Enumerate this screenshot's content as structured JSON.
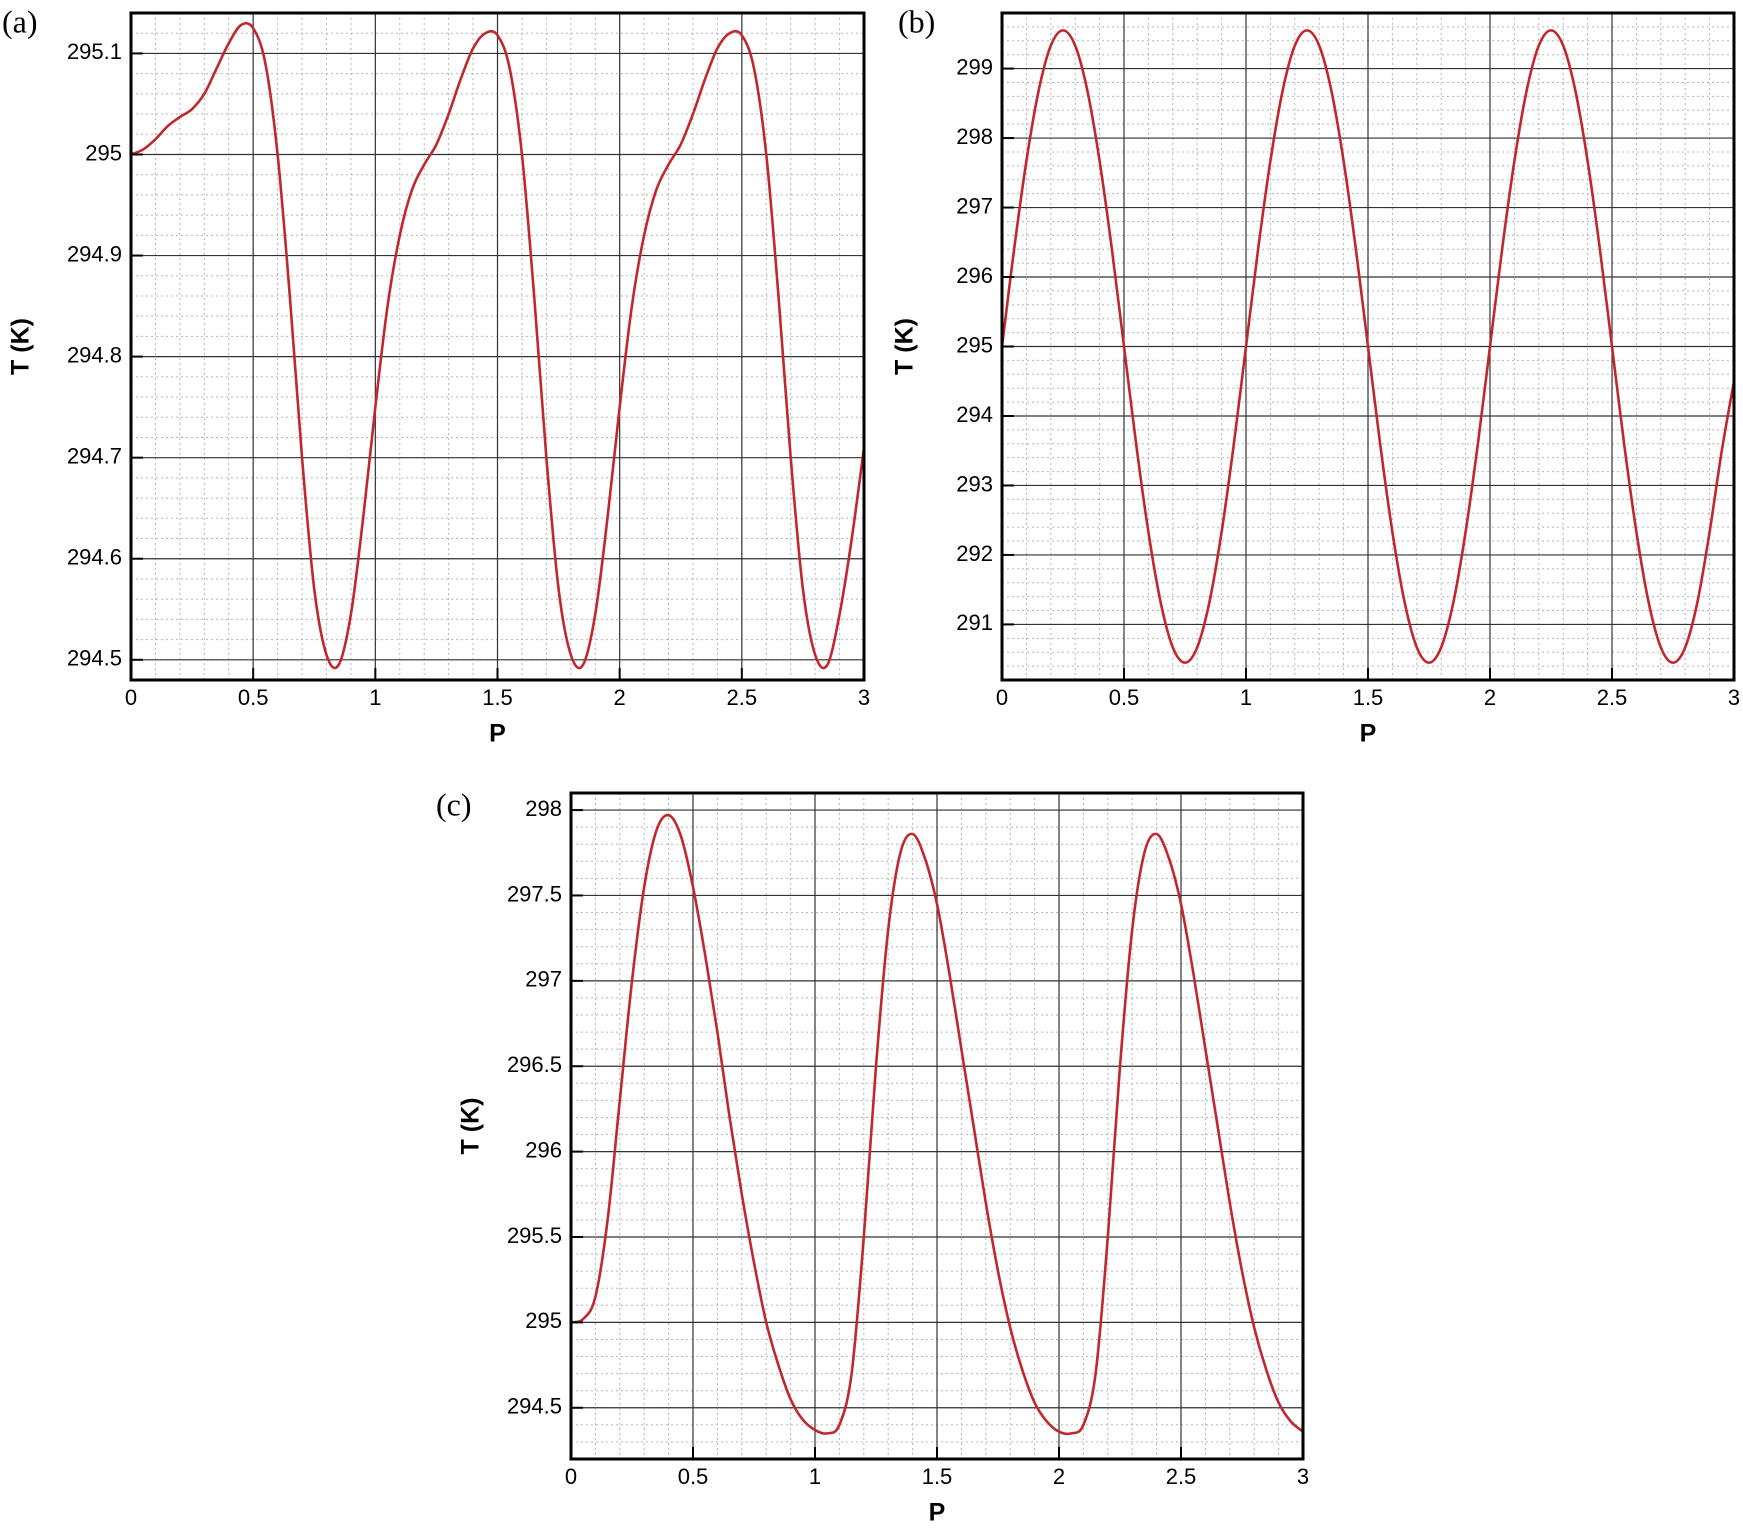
{
  "chart_data": [
    {
      "type": "line",
      "label": "(a)",
      "x_label": "P",
      "y_label": "T (K)",
      "color": "#c1272d",
      "grid": true,
      "minor_divisions": 5,
      "xlim": [
        0,
        3
      ],
      "xticks": [
        0,
        0.5,
        1,
        1.5,
        2,
        2.5,
        3
      ],
      "ylim": [
        294.48,
        295.14
      ],
      "yticks": [
        294.5,
        294.6,
        294.7,
        294.8,
        294.9,
        295,
        295.1
      ],
      "x": [
        0,
        0.05,
        0.1,
        0.15,
        0.2,
        0.25,
        0.3,
        0.35,
        0.4,
        0.45,
        0.5,
        0.55,
        0.6,
        0.65,
        0.7,
        0.75,
        0.8,
        0.85,
        0.9,
        0.95,
        1,
        1.05,
        1.1,
        1.15,
        1.2,
        1.25,
        1.3,
        1.35,
        1.4,
        1.45,
        1.5,
        1.55,
        1.6,
        1.65,
        1.7,
        1.75,
        1.8,
        1.85,
        1.9,
        1.95,
        2,
        2.05,
        2.1,
        2.15,
        2.2,
        2.25,
        2.3,
        2.35,
        2.4,
        2.45,
        2.5,
        2.55,
        2.6,
        2.65,
        2.7,
        2.75,
        2.8,
        2.85,
        2.9,
        2.95,
        3
      ],
      "values": [
        295.0,
        295.005,
        295.015,
        295.028,
        295.037,
        295.045,
        295.06,
        295.085,
        295.11,
        295.128,
        295.125,
        295.09,
        295.0,
        294.86,
        294.7,
        294.57,
        294.505,
        294.495,
        294.545,
        294.64,
        294.75,
        294.85,
        294.92,
        294.965,
        294.99,
        295.01,
        295.04,
        295.075,
        295.105,
        295.12,
        295.118,
        295.085,
        295.0,
        294.86,
        294.7,
        294.57,
        294.505,
        294.495,
        294.545,
        294.64,
        294.75,
        294.85,
        294.92,
        294.965,
        294.99,
        295.01,
        295.04,
        295.075,
        295.105,
        295.12,
        295.118,
        295.085,
        295.0,
        294.86,
        294.7,
        294.57,
        294.505,
        294.495,
        294.545,
        294.62,
        294.71
      ]
    },
    {
      "type": "line",
      "label": "(b)",
      "x_label": "P",
      "y_label": "T (K)",
      "color": "#c1272d",
      "grid": true,
      "minor_divisions": 5,
      "xlim": [
        0,
        3
      ],
      "xticks": [
        0,
        0.5,
        1,
        1.5,
        2,
        2.5,
        3
      ],
      "ylim": [
        290.2,
        299.8
      ],
      "yticks": [
        291,
        292,
        293,
        294,
        295,
        296,
        297,
        298,
        299
      ],
      "x": [
        0,
        0.05,
        0.1,
        0.15,
        0.2,
        0.25,
        0.3,
        0.35,
        0.4,
        0.45,
        0.5,
        0.55,
        0.6,
        0.65,
        0.7,
        0.75,
        0.8,
        0.85,
        0.9,
        0.95,
        1,
        1.05,
        1.1,
        1.15,
        1.2,
        1.25,
        1.3,
        1.35,
        1.4,
        1.45,
        1.5,
        1.55,
        1.6,
        1.65,
        1.7,
        1.75,
        1.8,
        1.85,
        1.9,
        1.95,
        2,
        2.05,
        2.1,
        2.15,
        2.2,
        2.25,
        2.3,
        2.35,
        2.4,
        2.45,
        2.5,
        2.55,
        2.6,
        2.65,
        2.7,
        2.75,
        2.8,
        2.85,
        2.9,
        2.95,
        3
      ],
      "values": [
        295,
        296.41,
        297.67,
        298.68,
        299.33,
        299.55,
        299.33,
        298.68,
        297.67,
        296.41,
        295,
        293.59,
        292.33,
        291.32,
        290.67,
        290.45,
        290.67,
        291.32,
        292.33,
        293.59,
        295,
        296.41,
        297.67,
        298.68,
        299.33,
        299.55,
        299.33,
        298.68,
        297.67,
        296.41,
        295,
        293.59,
        292.33,
        291.32,
        290.67,
        290.45,
        290.67,
        291.32,
        292.33,
        293.59,
        295,
        296.41,
        297.67,
        298.68,
        299.33,
        299.55,
        299.33,
        298.68,
        297.67,
        296.41,
        295,
        293.59,
        292.33,
        291.32,
        290.67,
        290.45,
        290.67,
        291.32,
        292.33,
        293.5,
        294.5
      ]
    },
    {
      "type": "line",
      "label": "(c)",
      "x_label": "P",
      "y_label": "T (K)",
      "color": "#c1272d",
      "grid": true,
      "minor_divisions": 5,
      "xlim": [
        0,
        3
      ],
      "xticks": [
        0,
        0.5,
        1,
        1.5,
        2,
        2.5,
        3
      ],
      "ylim": [
        294.2,
        298.1
      ],
      "yticks": [
        294.5,
        295,
        295.5,
        296,
        296.5,
        297,
        297.5,
        298
      ],
      "x": [
        0,
        0.05,
        0.1,
        0.15,
        0.2,
        0.25,
        0.3,
        0.35,
        0.4,
        0.45,
        0.5,
        0.55,
        0.6,
        0.65,
        0.7,
        0.75,
        0.8,
        0.85,
        0.9,
        0.95,
        1,
        1.05,
        1.1,
        1.15,
        1.2,
        1.25,
        1.3,
        1.35,
        1.4,
        1.45,
        1.5,
        1.55,
        1.6,
        1.65,
        1.7,
        1.75,
        1.8,
        1.85,
        1.9,
        1.95,
        2,
        2.05,
        2.1,
        2.15,
        2.2,
        2.25,
        2.3,
        2.35,
        2.4,
        2.45,
        2.5,
        2.55,
        2.6,
        2.65,
        2.7,
        2.75,
        2.8,
        2.85,
        2.9,
        2.95,
        3
      ],
      "values": [
        295.0,
        295.02,
        295.15,
        295.6,
        296.3,
        297.0,
        297.55,
        297.88,
        297.97,
        297.85,
        297.55,
        297.15,
        296.7,
        296.2,
        295.75,
        295.35,
        295.0,
        294.75,
        294.55,
        294.43,
        294.37,
        294.35,
        294.4,
        294.7,
        295.5,
        296.5,
        297.3,
        297.75,
        297.86,
        297.72,
        297.45,
        297.05,
        296.6,
        296.15,
        295.7,
        295.3,
        294.97,
        294.72,
        294.53,
        294.42,
        294.36,
        294.35,
        294.4,
        294.7,
        295.5,
        296.5,
        297.3,
        297.75,
        297.86,
        297.72,
        297.45,
        297.05,
        296.6,
        296.15,
        295.7,
        295.3,
        294.97,
        294.72,
        294.53,
        294.42,
        294.36
      ]
    }
  ]
}
